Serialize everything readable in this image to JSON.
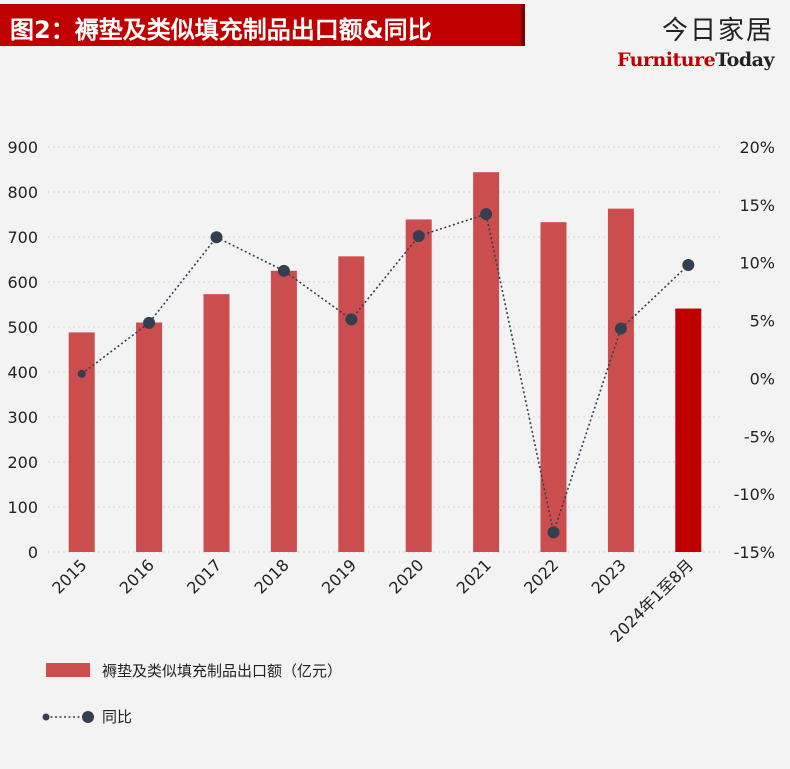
{
  "header": {
    "title": "图2：褥垫及类似填充制品出口额&同比",
    "brand_cn": "今日家居",
    "brand_en_red": "Furniture",
    "brand_en_dark": "Today"
  },
  "chart_data": {
    "type": "bar",
    "categories": [
      "2015",
      "2016",
      "2017",
      "2018",
      "2019",
      "2020",
      "2021",
      "2022",
      "2023",
      "2024年1至8月"
    ],
    "series": [
      {
        "name": "褥垫及类似填充制品出口额（亿元）",
        "type": "bar",
        "axis": "left",
        "values": [
          488,
          510,
          573,
          625,
          657,
          739,
          844,
          733,
          763,
          541
        ],
        "color": "#cc4d4d",
        "highlight_color": "#c00000",
        "highlight_index": 9
      },
      {
        "name": "同比",
        "type": "line",
        "axis": "right",
        "values": [
          0.4,
          4.8,
          12.2,
          9.3,
          5.1,
          12.3,
          14.2,
          -13.3,
          4.3,
          9.8
        ],
        "color": "#333f50",
        "line_style": "dotted"
      }
    ],
    "left_axis": {
      "ylim": [
        0,
        900
      ],
      "ticks": [
        "0",
        "100",
        "200",
        "300",
        "400",
        "500",
        "600",
        "700",
        "800",
        "900"
      ]
    },
    "right_axis": {
      "ylim": [
        -15,
        20
      ],
      "ticks": [
        "-15%",
        "-10%",
        "-5%",
        "0%",
        "5%",
        "10%",
        "15%",
        "20%"
      ]
    },
    "grid": "horizontal-dotted",
    "legend_position": "bottom-left"
  }
}
